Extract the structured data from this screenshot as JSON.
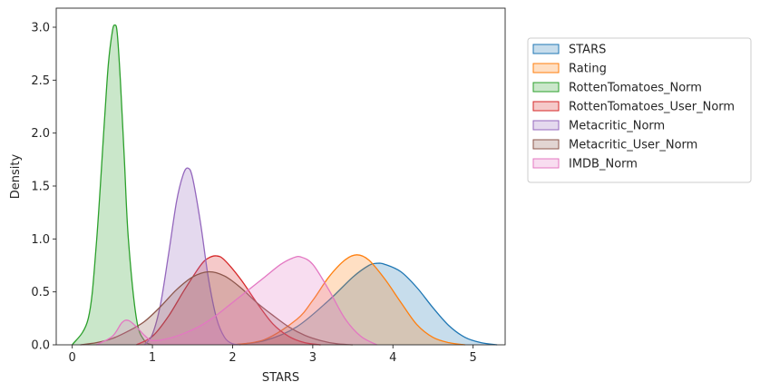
{
  "chart_data": {
    "type": "area",
    "xlabel": "STARS",
    "ylabel": "Density",
    "xlim": [
      -0.2,
      5.4
    ],
    "ylim": [
      0,
      3.18
    ],
    "xticks": [
      "0",
      "1",
      "2",
      "3",
      "4",
      "5"
    ],
    "yticks": [
      "0.0",
      "0.5",
      "1.0",
      "1.5",
      "2.0",
      "2.5",
      "3.0"
    ],
    "legend_position": "outside-right",
    "series": [
      {
        "name": "STARS",
        "color": "#1f77b4",
        "x": [
          2.0,
          2.4,
          2.8,
          3.2,
          3.5,
          3.7,
          3.8,
          3.9,
          4.1,
          4.3,
          4.5,
          4.7,
          4.9,
          5.1,
          5.3
        ],
        "y": [
          0.0,
          0.04,
          0.17,
          0.42,
          0.64,
          0.75,
          0.77,
          0.76,
          0.69,
          0.54,
          0.35,
          0.18,
          0.07,
          0.02,
          0.0
        ]
      },
      {
        "name": "Rating",
        "color": "#ff7f0e",
        "x": [
          2.0,
          2.4,
          2.8,
          3.0,
          3.2,
          3.4,
          3.55,
          3.7,
          3.9,
          4.1,
          4.3,
          4.5,
          4.7,
          4.9
        ],
        "y": [
          0.0,
          0.05,
          0.24,
          0.42,
          0.64,
          0.8,
          0.85,
          0.8,
          0.62,
          0.4,
          0.19,
          0.07,
          0.02,
          0.0
        ]
      },
      {
        "name": "RottenTomatoes_Norm",
        "color": "#2ca02c",
        "x": [
          0.0,
          0.2,
          0.3,
          0.4,
          0.45,
          0.5,
          0.53,
          0.56,
          0.6,
          0.65,
          0.7,
          0.8,
          0.9,
          1.0
        ],
        "y": [
          0.0,
          0.25,
          0.95,
          2.1,
          2.65,
          2.96,
          3.02,
          2.95,
          2.5,
          1.75,
          1.0,
          0.25,
          0.04,
          0.0
        ]
      },
      {
        "name": "RottenTomatoes_User_Norm",
        "color": "#d62728",
        "x": [
          0.8,
          1.0,
          1.2,
          1.4,
          1.6,
          1.7,
          1.8,
          1.9,
          2.1,
          2.3,
          2.5,
          2.7,
          2.9,
          3.1
        ],
        "y": [
          0.0,
          0.08,
          0.27,
          0.52,
          0.75,
          0.82,
          0.84,
          0.8,
          0.62,
          0.4,
          0.2,
          0.08,
          0.02,
          0.0
        ]
      },
      {
        "name": "Metacritic_Norm",
        "color": "#9467bd",
        "x": [
          0.9,
          1.0,
          1.1,
          1.2,
          1.3,
          1.38,
          1.44,
          1.5,
          1.6,
          1.7,
          1.8,
          1.9,
          2.0,
          2.1
        ],
        "y": [
          0.0,
          0.1,
          0.38,
          0.85,
          1.35,
          1.6,
          1.67,
          1.58,
          1.15,
          0.62,
          0.25,
          0.07,
          0.01,
          0.0
        ]
      },
      {
        "name": "Metacritic_User_Norm",
        "color": "#8c564b",
        "x": [
          0.1,
          0.3,
          0.5,
          0.7,
          0.9,
          1.1,
          1.3,
          1.5,
          1.7,
          1.9,
          2.1,
          2.3,
          2.5,
          2.7,
          2.9,
          3.1,
          3.3,
          3.5
        ],
        "y": [
          0.0,
          0.02,
          0.06,
          0.13,
          0.22,
          0.36,
          0.52,
          0.64,
          0.69,
          0.65,
          0.54,
          0.4,
          0.28,
          0.17,
          0.09,
          0.04,
          0.01,
          0.0
        ]
      },
      {
        "name": "IMDB_Norm",
        "color": "#e377c2",
        "x": [
          0.3,
          0.5,
          0.62,
          0.7,
          0.8,
          0.9,
          1.0,
          1.2,
          1.4,
          1.6,
          1.8,
          2.0,
          2.2,
          2.4,
          2.6,
          2.75,
          2.85,
          3.0,
          3.2,
          3.4,
          3.6,
          3.8
        ],
        "y": [
          0.0,
          0.08,
          0.21,
          0.23,
          0.17,
          0.09,
          0.04,
          0.06,
          0.11,
          0.18,
          0.28,
          0.4,
          0.52,
          0.64,
          0.76,
          0.82,
          0.83,
          0.76,
          0.52,
          0.25,
          0.08,
          0.0
        ]
      }
    ]
  }
}
